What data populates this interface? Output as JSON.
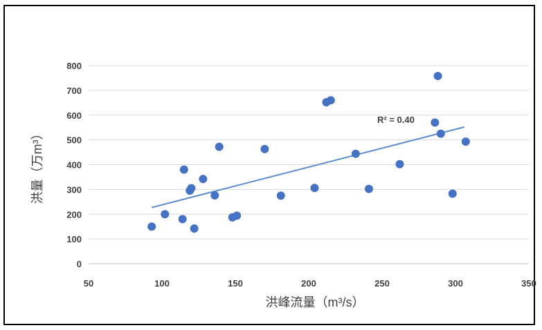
{
  "chart_data": {
    "type": "scatter",
    "xlabel": "洪峰流量（m³/s）",
    "ylabel": "洪量（万m³）",
    "xlim": [
      50,
      350
    ],
    "ylim": [
      0,
      800
    ],
    "xticks": [
      50,
      100,
      150,
      200,
      250,
      300,
      350
    ],
    "yticks": [
      0,
      100,
      200,
      300,
      400,
      500,
      600,
      700,
      800
    ],
    "xtick_labels": [
      "50",
      "100",
      "150",
      "200",
      "250",
      "300",
      "350"
    ],
    "ytick_labels": [
      "0",
      "100",
      "200",
      "300",
      "400",
      "500",
      "600",
      "700",
      "800"
    ],
    "grid": "horizontal",
    "point_color": "#4472C4",
    "trendline_color": "#5B8BD0",
    "trendline": {
      "type": "linear",
      "from": [
        93,
        227
      ],
      "to": [
        306,
        552
      ]
    },
    "annotation": "R² = 0.40",
    "points": [
      {
        "x": 93,
        "y": 150
      },
      {
        "x": 102,
        "y": 200
      },
      {
        "x": 114,
        "y": 180
      },
      {
        "x": 115,
        "y": 380
      },
      {
        "x": 119,
        "y": 295
      },
      {
        "x": 120,
        "y": 305
      },
      {
        "x": 122,
        "y": 142
      },
      {
        "x": 128,
        "y": 342
      },
      {
        "x": 136,
        "y": 276
      },
      {
        "x": 139,
        "y": 472
      },
      {
        "x": 148,
        "y": 187
      },
      {
        "x": 151,
        "y": 194
      },
      {
        "x": 170,
        "y": 463
      },
      {
        "x": 181,
        "y": 275
      },
      {
        "x": 204,
        "y": 306
      },
      {
        "x": 212,
        "y": 652
      },
      {
        "x": 215,
        "y": 660
      },
      {
        "x": 232,
        "y": 444
      },
      {
        "x": 241,
        "y": 302
      },
      {
        "x": 262,
        "y": 402
      },
      {
        "x": 286,
        "y": 570
      },
      {
        "x": 288,
        "y": 758
      },
      {
        "x": 290,
        "y": 525
      },
      {
        "x": 298,
        "y": 283
      },
      {
        "x": 307,
        "y": 493
      }
    ]
  }
}
